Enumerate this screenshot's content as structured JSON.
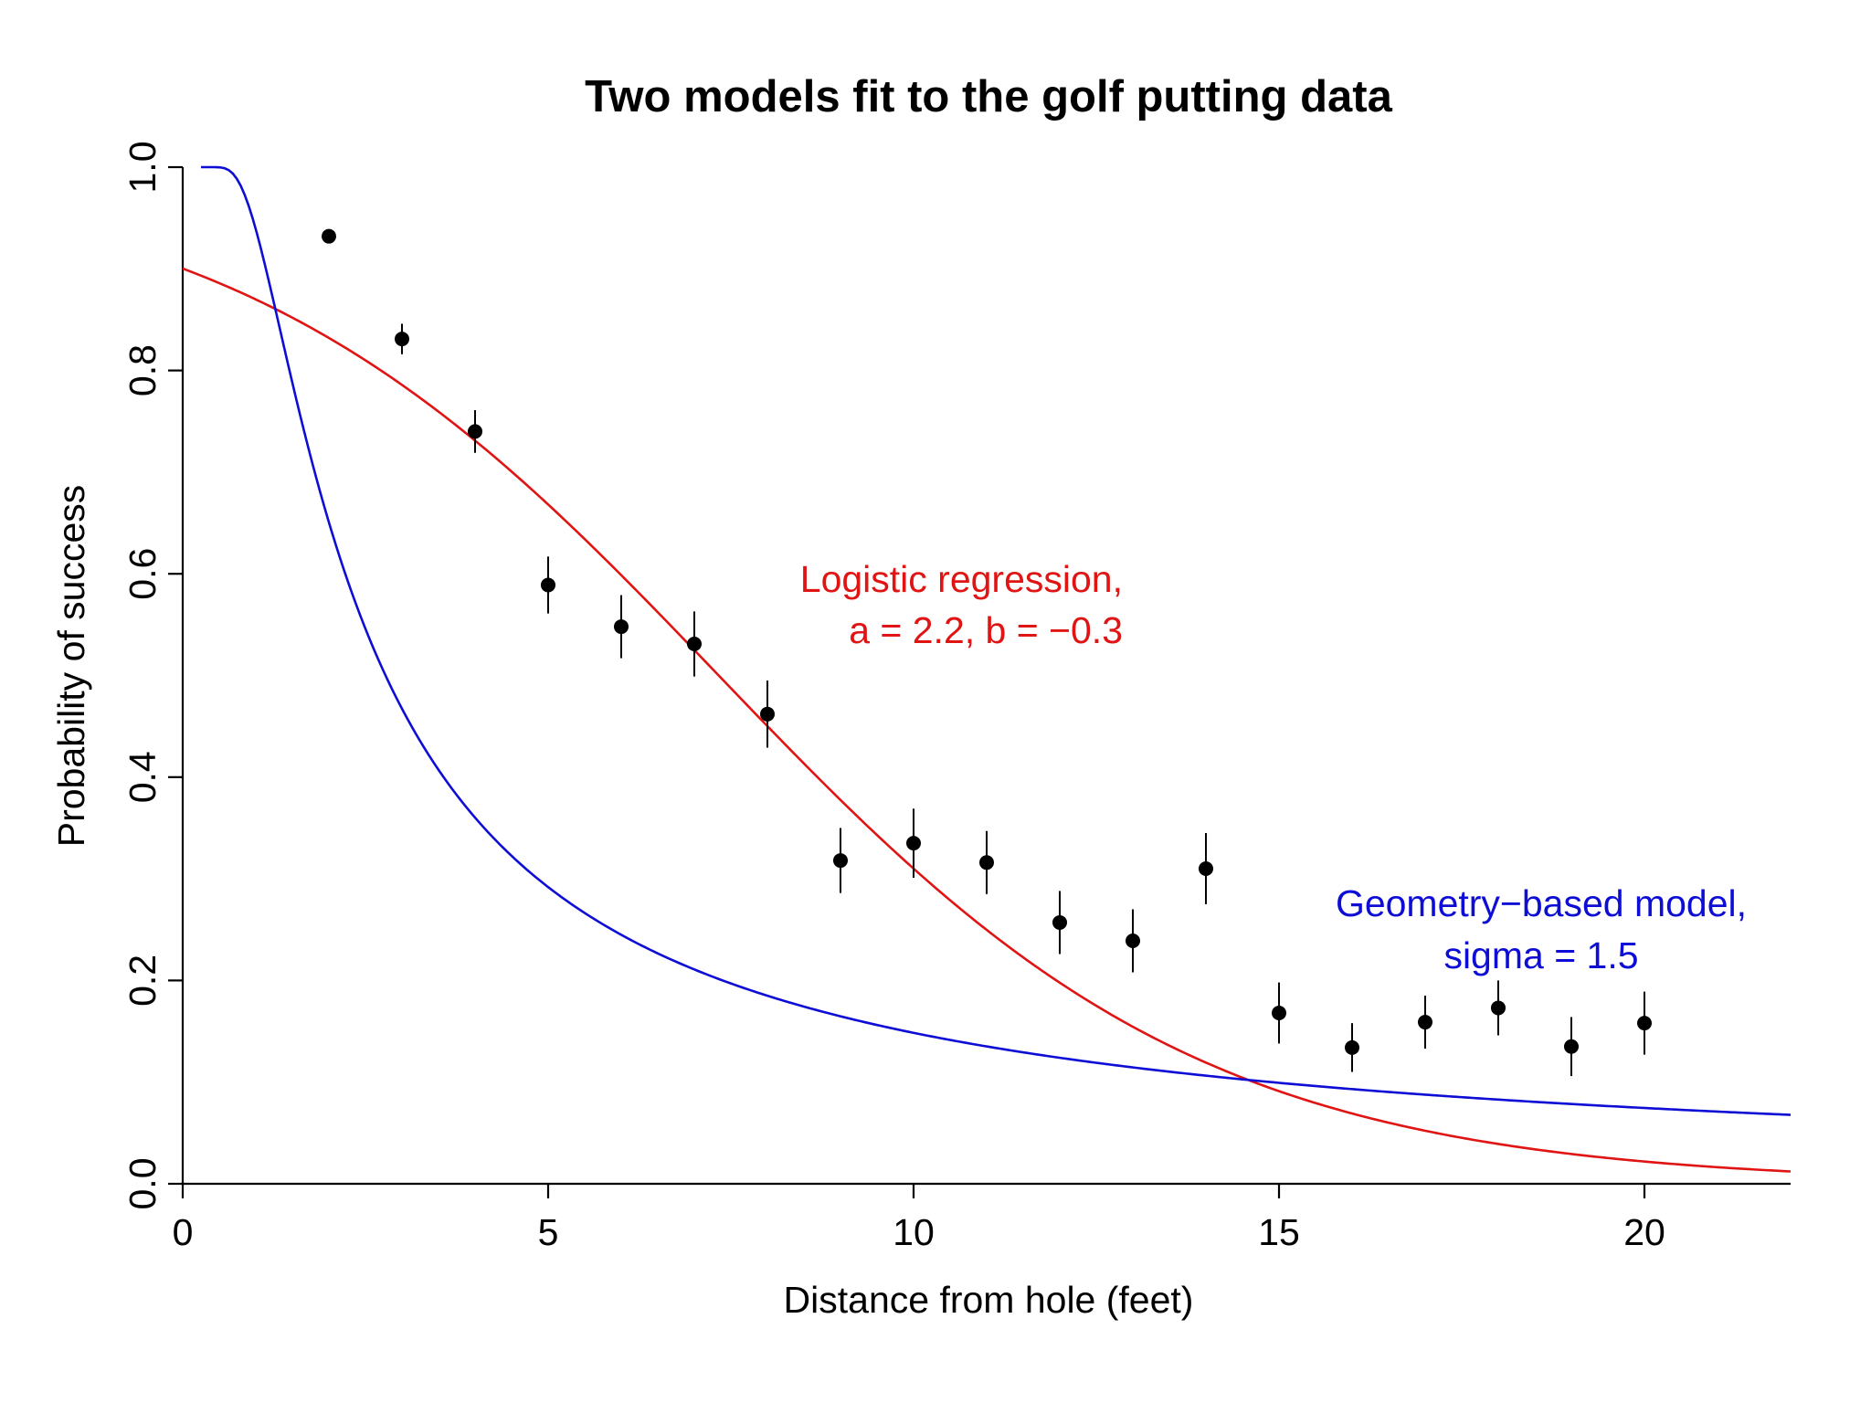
{
  "chart_data": {
    "type": "scatter",
    "title": "Two models fit to the golf putting data",
    "xlabel": "Distance from hole (feet)",
    "ylabel": "Probability of success",
    "xlim": [
      0,
      22
    ],
    "ylim": [
      0,
      1
    ],
    "x_ticks": [
      "0",
      "5",
      "10",
      "15",
      "20"
    ],
    "y_ticks": [
      "0.0",
      "0.2",
      "0.4",
      "0.6",
      "0.8",
      "1.0"
    ],
    "grid": false,
    "points": {
      "x": [
        2,
        3,
        4,
        5,
        6,
        7,
        8,
        9,
        10,
        11,
        12,
        13,
        14,
        15,
        16,
        17,
        18,
        19,
        20
      ],
      "y": [
        0.932,
        0.831,
        0.74,
        0.589,
        0.548,
        0.531,
        0.462,
        0.318,
        0.335,
        0.316,
        0.257,
        0.239,
        0.31,
        0.168,
        0.134,
        0.159,
        0.173,
        0.135,
        0.158
      ],
      "err": [
        0.003,
        0.015,
        0.021,
        0.028,
        0.031,
        0.032,
        0.033,
        0.032,
        0.034,
        0.031,
        0.031,
        0.031,
        0.035,
        0.03,
        0.024,
        0.026,
        0.027,
        0.029,
        0.031
      ]
    },
    "curves": [
      {
        "model": "logistic",
        "color": "#e11414",
        "a": 2.2,
        "b": -0.3,
        "label_line1": "Logistic regression,",
        "label_line2": "a = 2.2, b = −0.3"
      },
      {
        "model": "geometry",
        "color": "#0d0dd6",
        "sigma": 1.5,
        "label_line1": "Geometry−based model,",
        "label_line2": "sigma = 1.5"
      }
    ]
  }
}
